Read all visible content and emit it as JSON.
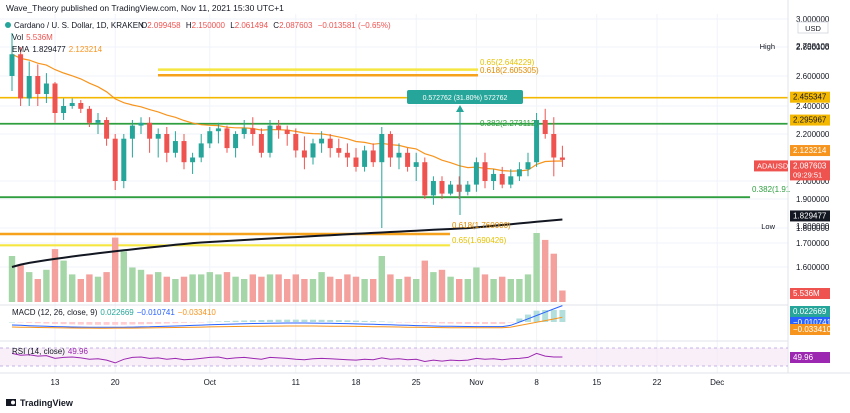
{
  "header": {
    "published_by": "Wave_Theory published on TradingView.com, Nov 11, 2021 15:30 UTC+1"
  },
  "symbol_line": {
    "title": "Cardano / U. S. Dollar, 1D, KRAKEN",
    "o_label": "O",
    "o_value": "2.099458",
    "h_label": "H",
    "h_value": "2.150000",
    "l_label": "L",
    "l_value": "2.061494",
    "c_label": "C",
    "c_value": "2.087603",
    "change": "−0.013581 (−0.65%)"
  },
  "vol_line": {
    "label": "Vol",
    "value": "5.536M"
  },
  "ema_line": {
    "label": "EMA",
    "value1": "1.829477",
    "value2": "2.123214"
  },
  "macd_label": {
    "label": "MACD (12, 26, close, 9)",
    "v1": "0.022669",
    "v2": "−0.010741",
    "v3": "−0.033410"
  },
  "rsi_label": {
    "label": "RSI (14, close)",
    "value": "49.96"
  },
  "footer": {
    "brand": "TradingView"
  },
  "axis": {
    "currency": "USD",
    "price_ticks": [
      "3.000000",
      "2.800000",
      "2.600000",
      "2.400000",
      "2.200000",
      "2.000000",
      "1.900000",
      "1.800000",
      "1.700000",
      "1.600000"
    ],
    "high_tag": {
      "label": "High",
      "value": "2.798108"
    },
    "low_tag": {
      "label": "Low",
      "value": "1.800000"
    },
    "time_labels": [
      "13",
      "20",
      "Oct",
      "11",
      "18",
      "25",
      "Nov",
      "8",
      "15",
      "22",
      "Dec"
    ]
  },
  "price_tags": [
    {
      "value": "2.455347",
      "color": "#f5b800",
      "text_color": "#131722"
    },
    {
      "value": "2.295967",
      "color": "#f5b800",
      "text_color": "#131722"
    },
    {
      "value": "2.123214",
      "color": "#f7941d",
      "text_color": "#ffffff"
    },
    {
      "value": "2.087603",
      "color": "#ef5350",
      "text_color": "#ffffff",
      "prefix": "ADAUSD",
      "sub": "09:29:51"
    },
    {
      "value": "1.829477",
      "color": "#131722",
      "text_color": "#ffffff"
    },
    {
      "value": "5.536M",
      "color": "#ef5350",
      "text_color": "#ffffff"
    },
    {
      "value": "0.022669",
      "color": "#26a69a",
      "text_color": "#ffffff"
    },
    {
      "value": "−0.010741",
      "color": "#2962ff",
      "text_color": "#ffffff"
    },
    {
      "value": "−0.033410",
      "color": "#f7941d",
      "text_color": "#ffffff"
    },
    {
      "value": "49.96",
      "color": "#9c27b0",
      "text_color": "#ffffff"
    }
  ],
  "annotations": {
    "fib_0650_top": "0.65(2.644229)",
    "fib_0618_top": "0.618(2.605305)",
    "measure": "0.572762 (31.80%) 572762",
    "fib_0382_top": "0.382(2.273112)",
    "fib_0382_mid": "0.382(1.91",
    "fib_0618_low": "0.618(1.760000)",
    "fib_0650_low": "0.65(1.690426)"
  },
  "colors": {
    "up": "#26a69a",
    "down": "#ef5350",
    "ema_fast": "#f7941d",
    "ema_slow": "#131722",
    "fib_yellow": "#f5e642",
    "fib_orange": "#f7a21d",
    "support_green": "#2e9e3e",
    "macd_line": "#2962ff",
    "signal_line": "#f7941d",
    "rsi_line": "#9c27b0"
  },
  "chart_data": {
    "type": "candlestick",
    "title": "Cardano / U. S. Dollar, 1D, KRAKEN",
    "dates": [
      "Sep 8",
      "Sep 9",
      "Sep 10",
      "Sep 11",
      "Sep 12",
      "Sep 13",
      "Sep 14",
      "Sep 15",
      "Sep 16",
      "Sep 17",
      "Sep 18",
      "Sep 19",
      "Sep 20",
      "Sep 21",
      "Sep 22",
      "Sep 23",
      "Sep 24",
      "Sep 25",
      "Sep 26",
      "Sep 27",
      "Sep 28",
      "Sep 29",
      "Sep 30",
      "Oct 1",
      "Oct 2",
      "Oct 3",
      "Oct 4",
      "Oct 5",
      "Oct 6",
      "Oct 7",
      "Oct 8",
      "Oct 9",
      "Oct 10",
      "Oct 11",
      "Oct 12",
      "Oct 13",
      "Oct 14",
      "Oct 15",
      "Oct 16",
      "Oct 17",
      "Oct 18",
      "Oct 19",
      "Oct 20",
      "Oct 21",
      "Oct 22",
      "Oct 23",
      "Oct 24",
      "Oct 25",
      "Oct 26",
      "Oct 27",
      "Oct 28",
      "Oct 29",
      "Oct 30",
      "Oct 31",
      "Nov 1",
      "Nov 2",
      "Nov 3",
      "Nov 4",
      "Nov 5",
      "Nov 6",
      "Nov 7",
      "Nov 8",
      "Nov 9",
      "Nov 10",
      "Nov 11"
    ],
    "ohlc": [
      [
        2.6,
        2.9,
        2.5,
        2.75
      ],
      [
        2.75,
        2.8,
        2.4,
        2.45
      ],
      [
        2.45,
        2.7,
        2.4,
        2.6
      ],
      [
        2.6,
        2.68,
        2.4,
        2.48
      ],
      [
        2.48,
        2.62,
        2.42,
        2.55
      ],
      [
        2.55,
        2.56,
        2.28,
        2.35
      ],
      [
        2.35,
        2.45,
        2.3,
        2.4
      ],
      [
        2.4,
        2.45,
        2.38,
        2.42
      ],
      [
        2.42,
        2.44,
        2.35,
        2.38
      ],
      [
        2.38,
        2.4,
        2.25,
        2.28
      ],
      [
        2.28,
        2.35,
        2.2,
        2.3
      ],
      [
        2.3,
        2.32,
        2.15,
        2.18
      ],
      [
        2.18,
        2.2,
        1.95,
        2.0
      ],
      [
        2.0,
        2.2,
        1.96,
        2.18
      ],
      [
        2.18,
        2.3,
        2.1,
        2.26
      ],
      [
        2.26,
        2.32,
        2.2,
        2.28
      ],
      [
        2.28,
        2.32,
        2.12,
        2.18
      ],
      [
        2.18,
        2.24,
        2.1,
        2.2
      ],
      [
        2.2,
        2.25,
        2.08,
        2.12
      ],
      [
        2.12,
        2.22,
        2.1,
        2.17
      ],
      [
        2.17,
        2.2,
        2.05,
        2.08
      ],
      [
        2.08,
        2.12,
        2.03,
        2.1
      ],
      [
        2.1,
        2.2,
        2.08,
        2.16
      ],
      [
        2.16,
        2.25,
        2.14,
        2.22
      ],
      [
        2.22,
        2.28,
        2.16,
        2.24
      ],
      [
        2.24,
        2.26,
        2.12,
        2.14
      ],
      [
        2.14,
        2.22,
        2.1,
        2.2
      ],
      [
        2.2,
        2.3,
        2.18,
        2.24
      ],
      [
        2.24,
        2.32,
        2.15,
        2.2
      ],
      [
        2.2,
        2.24,
        2.1,
        2.12
      ],
      [
        2.12,
        2.3,
        2.1,
        2.26
      ],
      [
        2.26,
        2.3,
        2.18,
        2.23
      ],
      [
        2.23,
        2.26,
        2.15,
        2.2
      ],
      [
        2.2,
        2.24,
        2.1,
        2.13
      ],
      [
        2.13,
        2.19,
        2.05,
        2.1
      ],
      [
        2.1,
        2.18,
        2.07,
        2.16
      ],
      [
        2.16,
        2.22,
        2.12,
        2.18
      ],
      [
        2.18,
        2.2,
        2.1,
        2.14
      ],
      [
        2.14,
        2.18,
        2.1,
        2.12
      ],
      [
        2.12,
        2.16,
        2.06,
        2.1
      ],
      [
        2.1,
        2.14,
        2.04,
        2.06
      ],
      [
        2.06,
        2.15,
        2.04,
        2.13
      ],
      [
        2.13,
        2.16,
        2.06,
        2.08
      ],
      [
        2.08,
        2.25,
        1.8,
        2.2
      ],
      [
        2.2,
        2.22,
        2.06,
        2.1
      ],
      [
        2.1,
        2.16,
        2.05,
        2.12
      ],
      [
        2.12,
        2.14,
        2.04,
        2.06
      ],
      [
        2.06,
        2.12,
        2.0,
        2.08
      ],
      [
        2.08,
        2.1,
        1.9,
        1.92
      ],
      [
        1.92,
        2.02,
        1.88,
        2.0
      ],
      [
        2.0,
        2.02,
        1.9,
        1.93
      ],
      [
        1.93,
        2.0,
        1.92,
        1.98
      ],
      [
        1.98,
        2.02,
        1.9,
        1.94
      ],
      [
        1.94,
        2.0,
        1.92,
        1.98
      ],
      [
        1.98,
        2.1,
        1.94,
        2.08
      ],
      [
        2.08,
        2.12,
        1.96,
        2.0
      ],
      [
        2.0,
        2.05,
        1.95,
        2.03
      ],
      [
        2.03,
        2.06,
        1.96,
        1.98
      ],
      [
        1.98,
        2.05,
        1.96,
        2.02
      ],
      [
        2.02,
        2.08,
        2.0,
        2.05
      ],
      [
        2.05,
        2.12,
        2.02,
        2.08
      ],
      [
        2.08,
        2.35,
        2.06,
        2.3
      ],
      [
        2.3,
        2.38,
        2.18,
        2.2
      ],
      [
        2.2,
        2.32,
        2.02,
        2.1
      ],
      [
        2.1,
        2.15,
        2.06,
        2.09
      ]
    ],
    "volume": [
      2.0,
      1.6,
      1.3,
      1.0,
      1.4,
      2.3,
      1.8,
      1.2,
      1.0,
      1.2,
      1.1,
      1.3,
      2.8,
      2.2,
      1.5,
      1.4,
      1.2,
      1.3,
      1.1,
      1.0,
      1.1,
      1.2,
      1.2,
      1.3,
      1.2,
      1.3,
      1.1,
      1.0,
      1.2,
      1.1,
      1.2,
      1.2,
      1.0,
      1.2,
      1.0,
      1.0,
      1.3,
      1.1,
      1.0,
      1.2,
      1.1,
      1.0,
      1.0,
      2.0,
      1.2,
      1.0,
      1.1,
      1.0,
      1.8,
      1.3,
      1.4,
      1.1,
      1.0,
      1.0,
      1.5,
      1.2,
      1.0,
      1.1,
      1.0,
      1.0,
      1.2,
      3.0,
      2.7,
      2.1,
      0.5
    ],
    "ylim": [
      1.55,
      3.0
    ],
    "rsi": [
      58,
      54,
      55,
      52,
      53,
      47,
      49,
      50,
      48,
      45,
      46,
      43,
      37,
      45,
      49,
      50,
      47,
      48,
      45,
      47,
      44,
      45,
      47,
      49,
      50,
      46,
      48,
      49,
      47,
      45,
      49,
      48,
      47,
      45,
      44,
      46,
      47,
      46,
      45,
      44,
      43,
      45,
      44,
      48,
      45,
      46,
      44,
      45,
      40,
      43,
      41,
      43,
      42,
      43,
      47,
      45,
      46,
      44,
      46,
      47,
      49,
      58,
      52,
      50,
      49.96
    ]
  }
}
